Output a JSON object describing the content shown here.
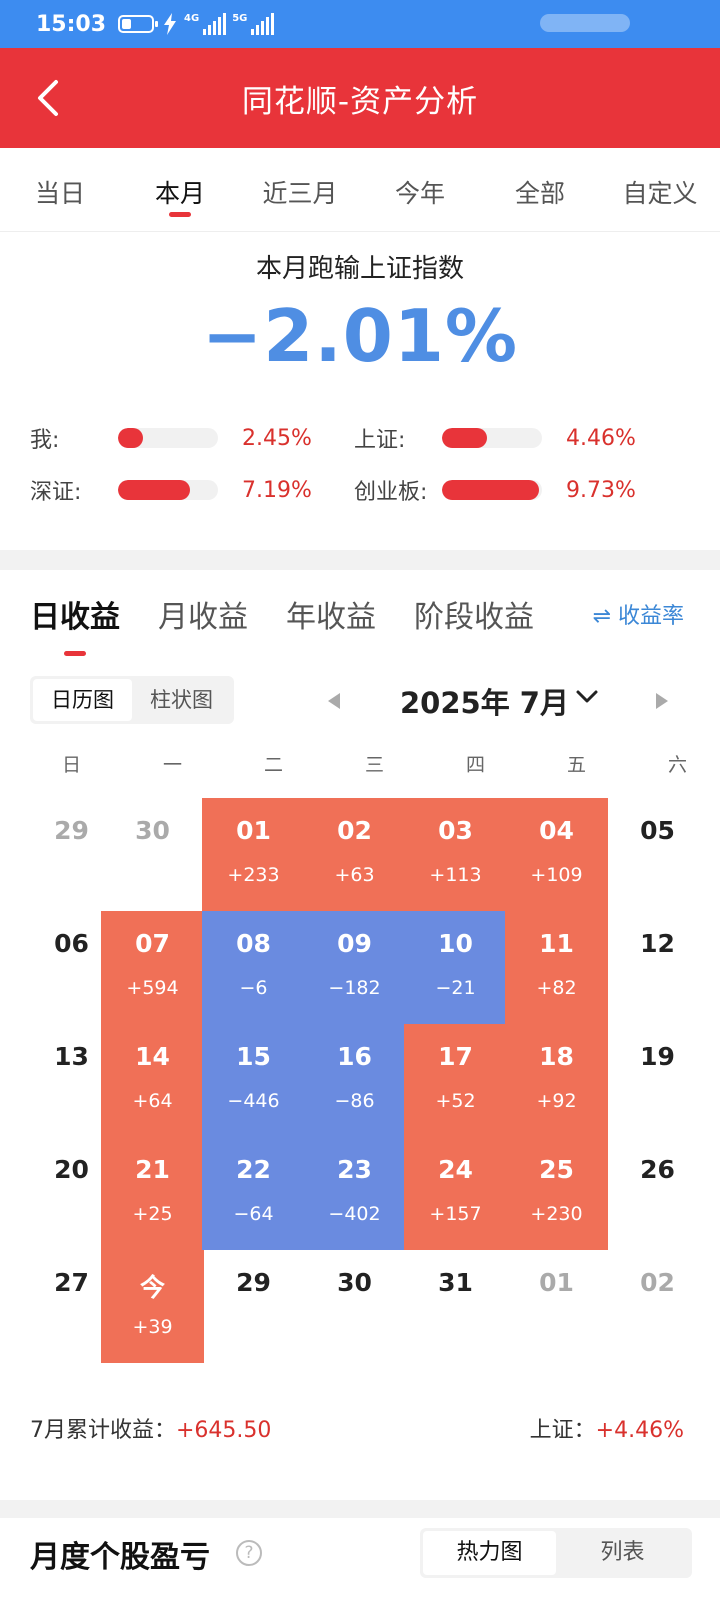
{
  "status_bar": {
    "time": "15:03",
    "net1": "4G",
    "net2": "5G"
  },
  "header": {
    "title": "同花顺-资产分析"
  },
  "period_tabs": [
    "当日",
    "本月",
    "近三月",
    "今年",
    "全部",
    "自定义"
  ],
  "compare": {
    "title": "本月跑输上证指数",
    "diff": "−2.01%",
    "items": [
      {
        "label": "我:",
        "value": "2.45%",
        "fill": 0.245
      },
      {
        "label": "上证:",
        "value": "4.46%",
        "fill": 0.446
      },
      {
        "label": "深证:",
        "value": "7.19%",
        "fill": 0.719
      },
      {
        "label": "创业板:",
        "value": "9.73%",
        "fill": 0.973
      }
    ]
  },
  "income": {
    "tabs": [
      "日收益",
      "月收益",
      "年收益",
      "阶段收益"
    ],
    "rate_button": "⇌ 收益率",
    "view_toggle": [
      "日历图",
      "柱状图"
    ],
    "month": "2025年 7月",
    "weekdays": [
      "日",
      "一",
      "二",
      "三",
      "四",
      "五",
      "六"
    ],
    "weeks": [
      [
        {
          "d": "29",
          "s": "grey"
        },
        {
          "d": "30",
          "s": "grey"
        },
        {
          "d": "01",
          "v": "+233",
          "s": "up"
        },
        {
          "d": "02",
          "v": "+63",
          "s": "up"
        },
        {
          "d": "03",
          "v": "+113",
          "s": "up"
        },
        {
          "d": "04",
          "v": "+109",
          "s": "up"
        },
        {
          "d": "05",
          "s": "plain"
        }
      ],
      [
        {
          "d": "06",
          "s": "plain"
        },
        {
          "d": "07",
          "v": "+594",
          "s": "up"
        },
        {
          "d": "08",
          "v": "−6",
          "s": "down"
        },
        {
          "d": "09",
          "v": "−182",
          "s": "down"
        },
        {
          "d": "10",
          "v": "−21",
          "s": "down"
        },
        {
          "d": "11",
          "v": "+82",
          "s": "up"
        },
        {
          "d": "12",
          "s": "plain"
        }
      ],
      [
        {
          "d": "13",
          "s": "plain"
        },
        {
          "d": "14",
          "v": "+64",
          "s": "up"
        },
        {
          "d": "15",
          "v": "−446",
          "s": "down"
        },
        {
          "d": "16",
          "v": "−86",
          "s": "down"
        },
        {
          "d": "17",
          "v": "+52",
          "s": "up"
        },
        {
          "d": "18",
          "v": "+92",
          "s": "up"
        },
        {
          "d": "19",
          "s": "plain"
        }
      ],
      [
        {
          "d": "20",
          "s": "plain"
        },
        {
          "d": "21",
          "v": "+25",
          "s": "up"
        },
        {
          "d": "22",
          "v": "−64",
          "s": "down"
        },
        {
          "d": "23",
          "v": "−402",
          "s": "down"
        },
        {
          "d": "24",
          "v": "+157",
          "s": "up"
        },
        {
          "d": "25",
          "v": "+230",
          "s": "up"
        },
        {
          "d": "26",
          "s": "plain"
        }
      ],
      [
        {
          "d": "27",
          "s": "plain"
        },
        {
          "d": "今",
          "v": "+39",
          "s": "up"
        },
        {
          "d": "29",
          "s": "plain"
        },
        {
          "d": "30",
          "s": "plain"
        },
        {
          "d": "31",
          "s": "plain"
        },
        {
          "d": "01",
          "s": "grey"
        },
        {
          "d": "02",
          "s": "grey"
        }
      ]
    ],
    "summary_label": "7月累计收益：",
    "summary_value": "+645.50",
    "index_label": "上证：",
    "index_value": "+4.46%"
  },
  "stock_section": {
    "title": "月度个股盈亏",
    "help": "?",
    "toggle": [
      "热力图",
      "列表"
    ]
  },
  "colors": {
    "header_red": "#e8343a",
    "gain": "#f07057",
    "loss": "#6a8be0",
    "status_blue": "#3d8cf0"
  }
}
